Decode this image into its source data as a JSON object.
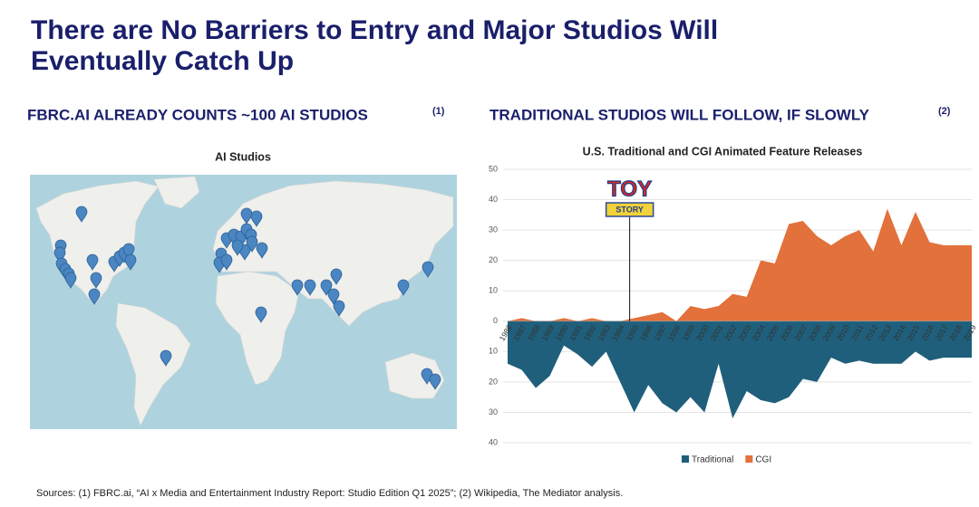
{
  "slide": {
    "title_line1": "There are No Barriers to Entry and Major Studios Will",
    "title_line2": "Eventually Catch Up",
    "left_heading": "FBRC.AI ALREADY COUNTS ~100 AI STUDIOS",
    "left_note": "(1)",
    "map_title": "AI Studios",
    "right_heading": "TRADITIONAL STUDIOS WILL FOLLOW, IF SLOWLY",
    "right_note": "(2)",
    "sources": "Sources: (1) FBRC.ai, “AI x Media and Entertainment Industry Report: Studio Edition Q1 2025”; (2) Wikipedia, The Mediator analysis."
  },
  "chart_data": {
    "type": "area",
    "title": "U.S. Traditional and CGI Animated Feature Releases",
    "annotation": {
      "line1": "TOY",
      "line2": "STORY",
      "category": "1995"
    },
    "categories": [
      "1986",
      "1987",
      "1988",
      "1989",
      "1990",
      "1991",
      "1992",
      "1993",
      "1994",
      "1995",
      "1996",
      "1997",
      "1998",
      "1999",
      "2000",
      "2001",
      "2002",
      "2003",
      "2004",
      "2005",
      "2006",
      "2007",
      "2008",
      "2009",
      "2010",
      "2011",
      "2012",
      "2013",
      "2014",
      "2015",
      "2016",
      "2017",
      "2018",
      "2019"
    ],
    "series": [
      {
        "name": "Traditional",
        "color": "#1f5f7b",
        "values": [
          -14,
          -16,
          -22,
          -18,
          -8,
          -11,
          -15,
          -10,
          -20,
          -30,
          -21,
          -27,
          -30,
          -25,
          -30,
          -14,
          -32,
          -23,
          -26,
          -27,
          -25,
          -19,
          -20,
          -12,
          -14,
          -13,
          -14,
          -14,
          -14,
          -10,
          -13,
          -12,
          -12,
          -12
        ]
      },
      {
        "name": "CGI",
        "color": "#e2713b",
        "values": [
          0,
          1,
          0,
          0,
          1,
          0,
          1,
          0,
          0,
          1,
          2,
          3,
          0,
          5,
          4,
          5,
          9,
          8,
          20,
          19,
          32,
          33,
          28,
          25,
          28,
          30,
          23,
          37,
          25,
          36,
          26,
          25,
          25,
          25
        ]
      }
    ],
    "ylim": [
      -40,
      50
    ],
    "yticks": [
      50,
      40,
      30,
      20,
      10,
      0,
      {
        "value": -10,
        "label": "10"
      },
      {
        "value": -20,
        "label": "20"
      },
      {
        "value": -30,
        "label": "30"
      },
      {
        "value": -40,
        "label": "40"
      }
    ],
    "grid": true,
    "legend": "bottom"
  }
}
